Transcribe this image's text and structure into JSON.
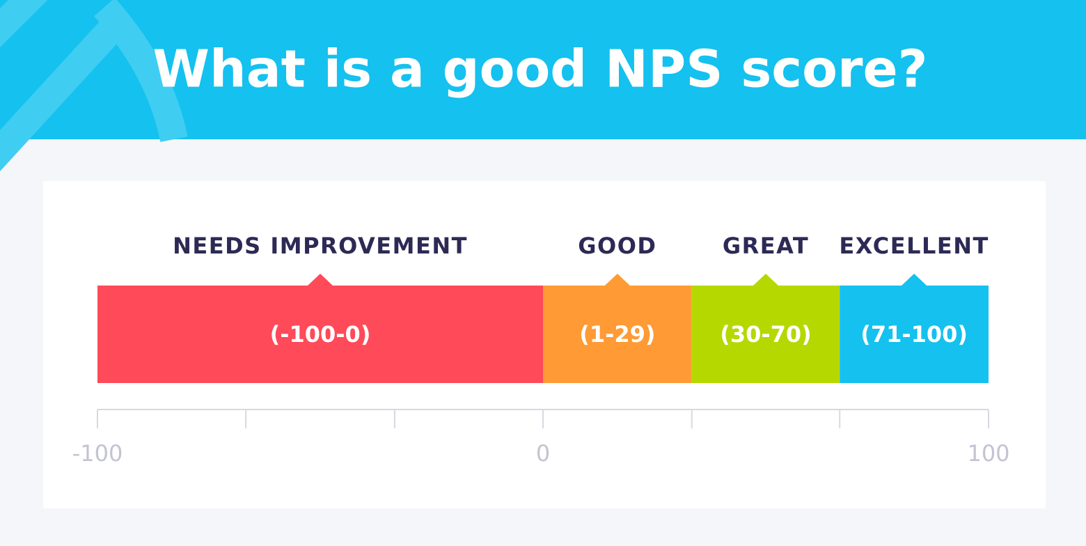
{
  "chart_data": {
    "type": "range-bar",
    "title": "What is a good NPS score?",
    "segments": [
      {
        "name": "NEEDS IMPROVEMENT",
        "range": "(-100-0)",
        "start": -100,
        "end": 0,
        "color": "#ff4a5a"
      },
      {
        "name": "GOOD",
        "range": "(1-29)",
        "start": 0,
        "end": 33.4,
        "color": "#ff9a35"
      },
      {
        "name": "GREAT",
        "range": "(30-70)",
        "start": 33.4,
        "end": 66.6,
        "color": "#b5d800"
      },
      {
        "name": "EXCELLENT",
        "range": "(71-100)",
        "start": 66.6,
        "end": 100,
        "color": "#14c1ef"
      }
    ],
    "xlim": [
      -100,
      100
    ],
    "xticks": [
      -100,
      0,
      100
    ],
    "minor_xticks": [
      -66.7,
      -33.3,
      33.4,
      66.6
    ]
  }
}
